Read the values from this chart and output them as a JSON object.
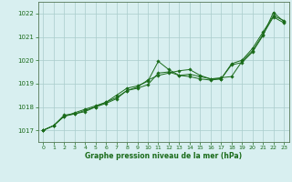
{
  "title": "Graphe pression niveau de la mer (hPa)",
  "background_color": "#d8eff0",
  "grid_color": "#aacccc",
  "line_color": "#1a6b1a",
  "marker_color": "#1a6b1a",
  "xlim": [
    -0.5,
    23.5
  ],
  "ylim": [
    1016.5,
    1022.5
  ],
  "yticks": [
    1017,
    1018,
    1019,
    1020,
    1021,
    1022
  ],
  "xticks": [
    0,
    1,
    2,
    3,
    4,
    5,
    6,
    7,
    8,
    9,
    10,
    11,
    12,
    13,
    14,
    15,
    16,
    17,
    18,
    19,
    20,
    21,
    22,
    23
  ],
  "series": [
    [
      1017.0,
      1017.2,
      1017.6,
      1017.7,
      1017.8,
      1018.0,
      1018.2,
      1018.4,
      1018.7,
      1018.85,
      1019.15,
      1019.35,
      1019.45,
      1019.55,
      1019.6,
      1019.35,
      1019.2,
      1019.2,
      1019.85,
      1020.0,
      1020.5,
      1021.2,
      1021.9,
      1021.7
    ],
    [
      1017.0,
      1017.2,
      1017.6,
      1017.75,
      1017.9,
      1018.05,
      1018.2,
      1018.5,
      1018.8,
      1018.9,
      1019.1,
      1019.95,
      1019.6,
      1019.35,
      1019.4,
      1019.3,
      1019.2,
      1019.25,
      1019.3,
      1019.95,
      1020.4,
      1021.1,
      1021.85,
      1021.6
    ],
    [
      1017.0,
      1017.2,
      1017.65,
      1017.7,
      1017.85,
      1018.0,
      1018.15,
      1018.35,
      1018.7,
      1018.8,
      1018.95,
      1019.45,
      1019.5,
      1019.35,
      1019.3,
      1019.2,
      1019.15,
      1019.2,
      1019.8,
      1019.9,
      1020.35,
      1021.05,
      1022.05,
      1021.65
    ]
  ],
  "figsize": [
    3.2,
    2.0
  ],
  "dpi": 100
}
